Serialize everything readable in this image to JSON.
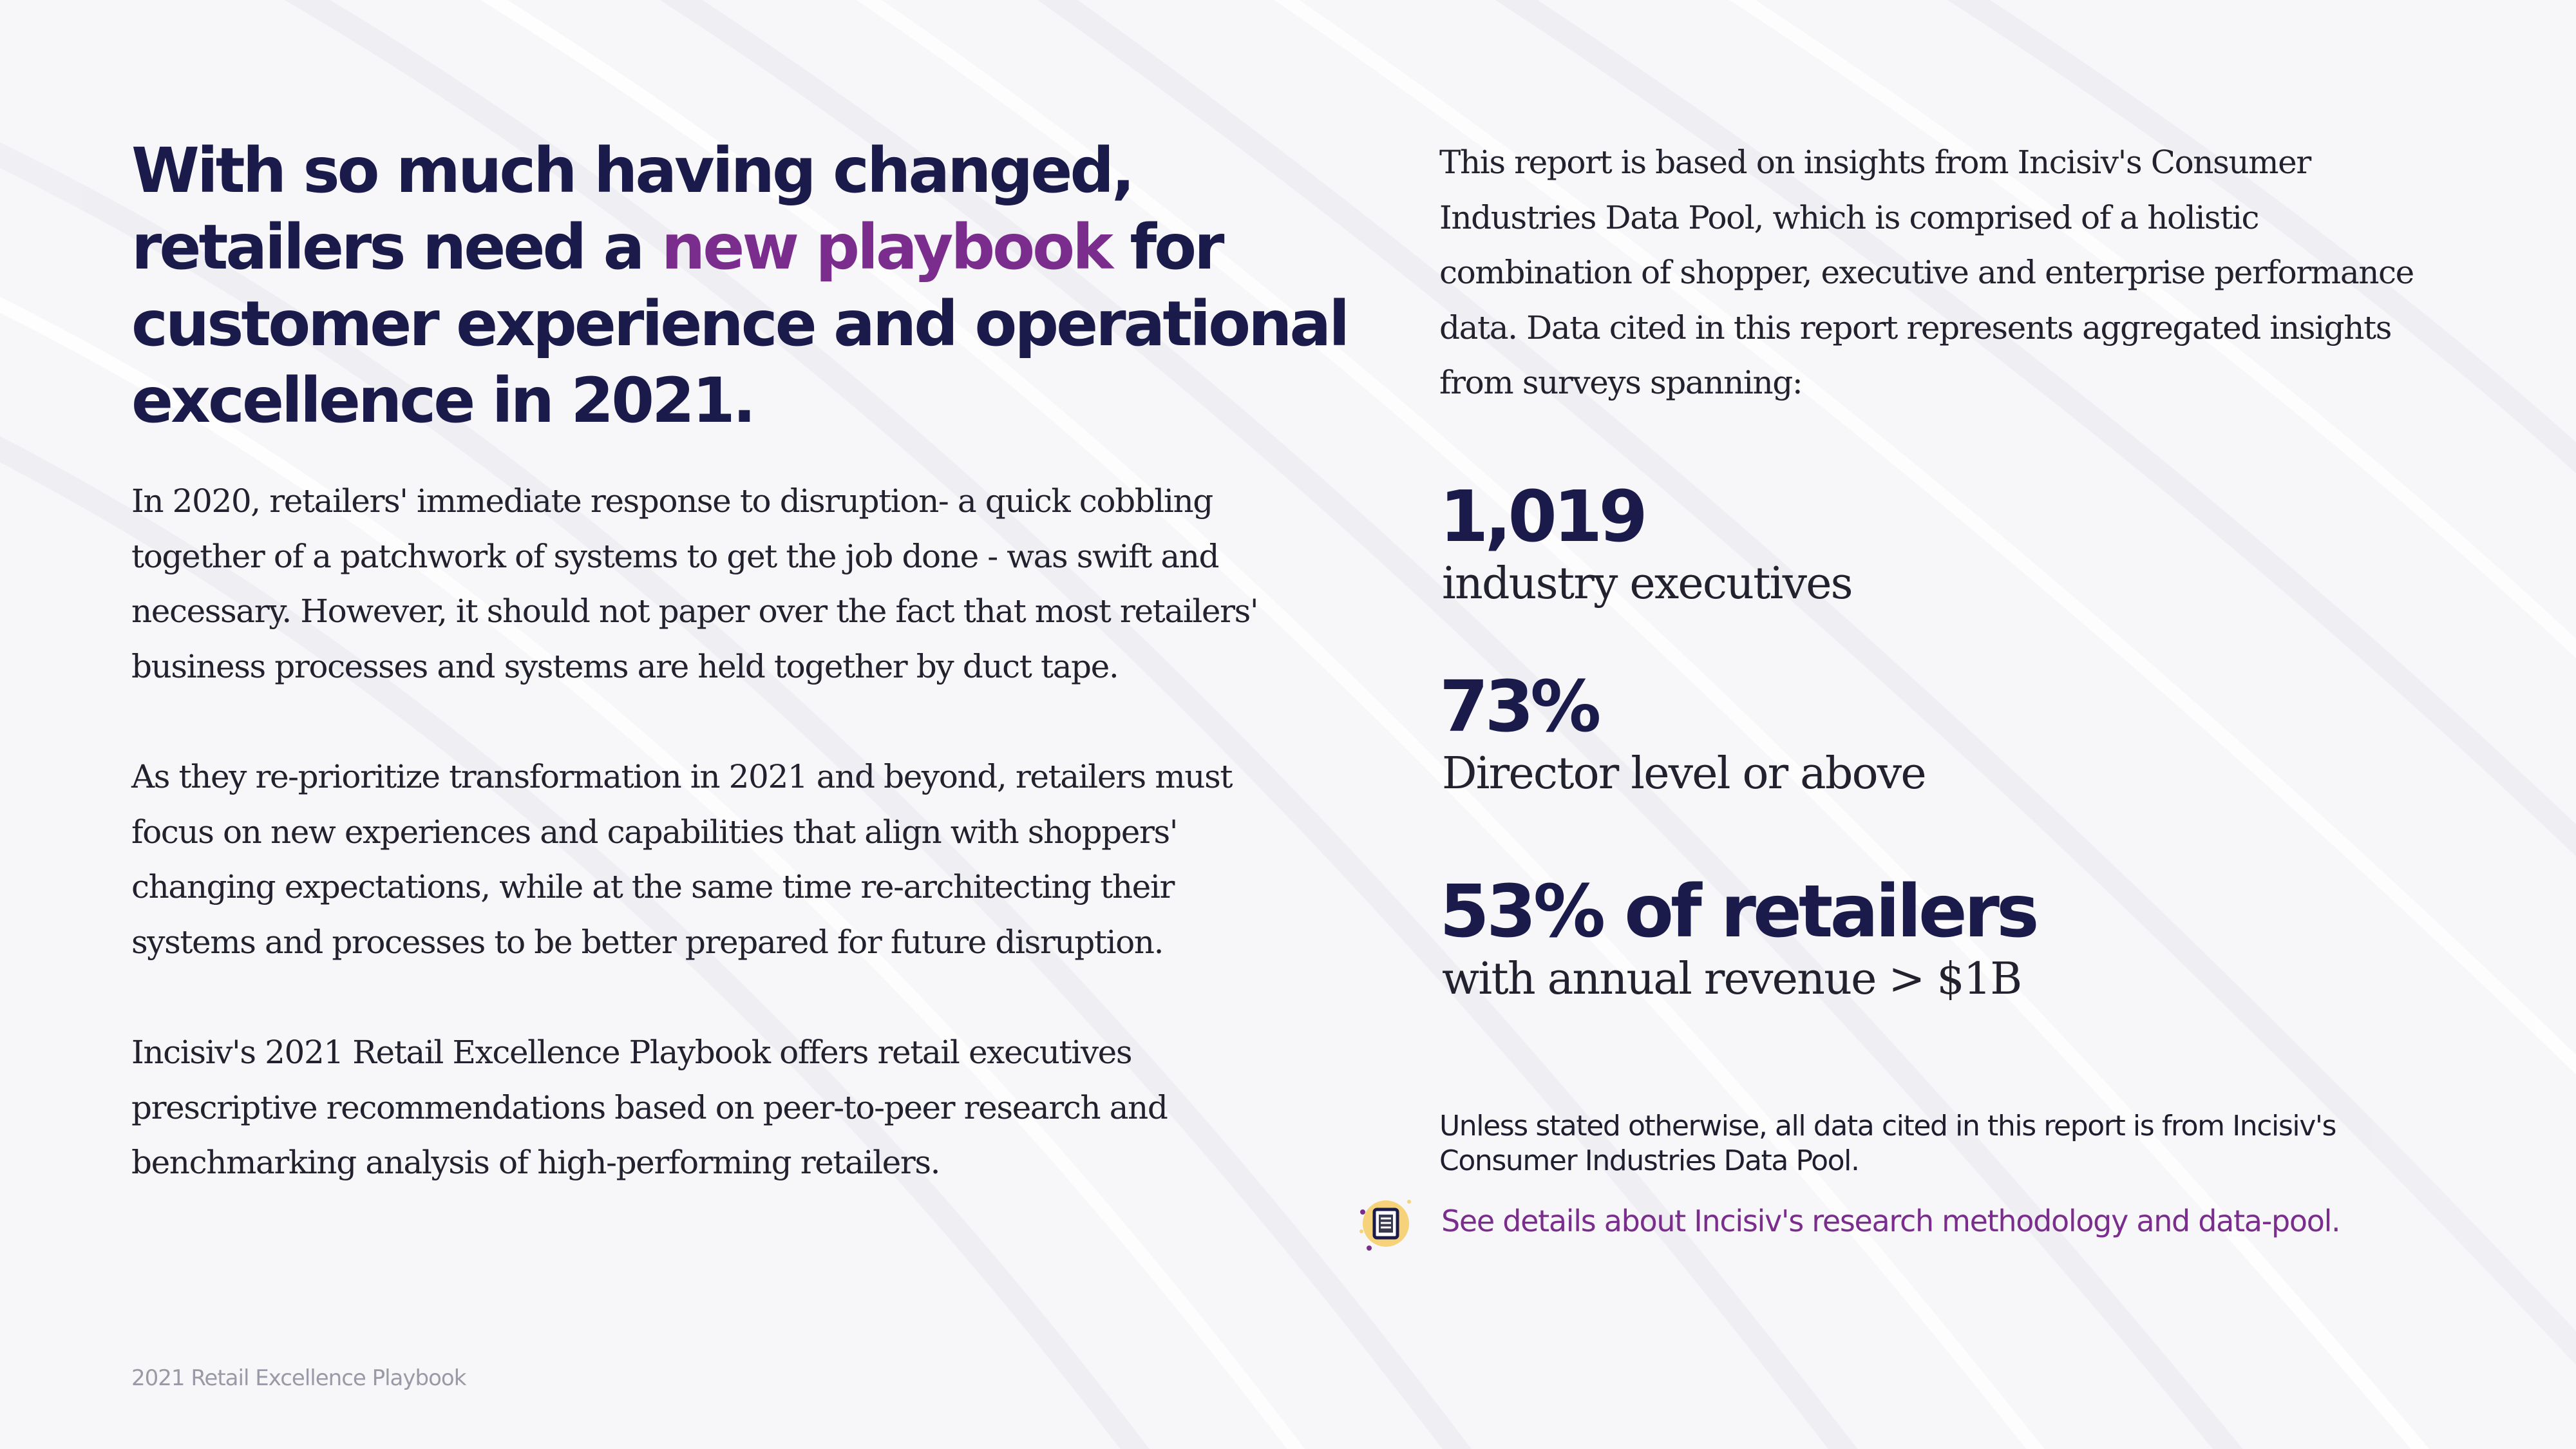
{
  "headline": {
    "before": "With so much having changed, retailers need a ",
    "accent": "new playbook",
    "after": " for customer experience and operational excellence in 2021."
  },
  "intro_paragraphs": [
    "In 2020, retailers' immediate response to disruption- a quick cobbling together of a patchwork of systems to get the job done - was swift and necessary. However, it should not paper over the fact that most retailers' business processes and systems are held together by duct tape.",
    "As they re-prioritize transformation in 2021 and beyond, retailers must focus on new experiences and capabilities that align with shoppers' changing expectations, while at the same time re-architecting their systems and processes to be better prepared for future disruption.",
    "Incisiv's 2021 Retail Excellence Playbook offers retail executives prescriptive recommendations based on peer-to-peer research and benchmarking analysis of high-performing retailers."
  ],
  "report_basis": "This report is based on insights from Incisiv's Consumer Industries Data Pool, which is comprised of a holistic combination of shopper, executive and enterprise performance data. Data cited in this report represents aggregated insights from surveys spanning:",
  "stats": [
    {
      "value": "1,019",
      "label": "industry executives"
    },
    {
      "value": "73%",
      "label": "Director level or above"
    },
    {
      "value": "53% of retailers",
      "label": "with annual revenue > $1B"
    }
  ],
  "source_note": "Unless stated otherwise, all data cited in this report is from Incisiv's Consumer Industries Data Pool.",
  "methodology_link": "See details about Incisiv's research methodology and data-pool.",
  "methodology_icon": "document-icon",
  "footer": "2021 Retail Excellence Playbook",
  "colors": {
    "headline": "#1b1b4b",
    "accent": "#7a2d8c",
    "body_text": "#22222e",
    "footer": "#9a9aa6",
    "icon_badge": "#f6d37a"
  }
}
